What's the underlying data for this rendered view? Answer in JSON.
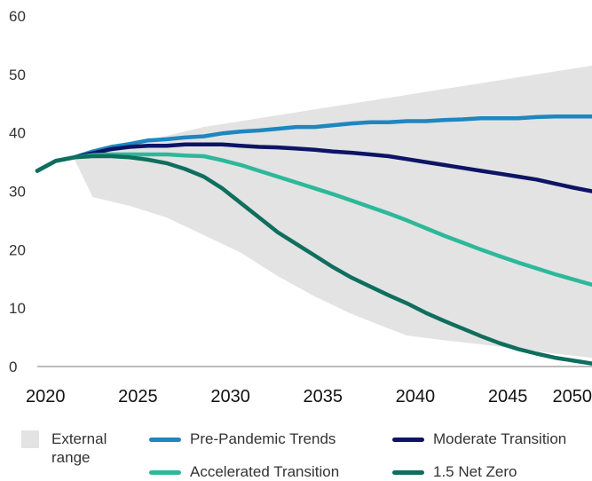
{
  "chart_data": {
    "type": "line",
    "title": "",
    "xlabel": "",
    "ylabel": "",
    "xlim": [
      2020,
      2050
    ],
    "ylim": [
      0,
      60
    ],
    "x_ticks": [
      "2020",
      "2025",
      "2030",
      "2035",
      "2040",
      "2045",
      "2050"
    ],
    "y_ticks": [
      "0",
      "10",
      "20",
      "30",
      "40",
      "50",
      "60"
    ],
    "grid": false,
    "legend_position": "bottom",
    "range": {
      "name": "External range",
      "color": "#e3e3e3",
      "x": [
        2022,
        2023,
        2025,
        2027,
        2029,
        2031,
        2033,
        2035,
        2037,
        2039,
        2040,
        2042,
        2044,
        2046,
        2048,
        2050
      ],
      "lower": [
        35.5,
        29,
        27.5,
        25.5,
        22.5,
        19.5,
        15.5,
        12,
        9,
        6.5,
        5.3,
        4.5,
        3.8,
        3,
        2.2,
        1.5
      ],
      "upper": [
        35.5,
        36.5,
        38,
        39.5,
        41,
        42,
        43,
        44,
        45,
        46,
        46.5,
        47.5,
        48.5,
        49.5,
        50.5,
        51.5
      ]
    },
    "series": [
      {
        "name": "Pre-Pandemic Trends",
        "color": "#1f86bf",
        "x": [
          2020,
          2021,
          2022,
          2023,
          2024,
          2025,
          2026,
          2027,
          2028,
          2029,
          2030,
          2031,
          2032,
          2033,
          2034,
          2035,
          2036,
          2037,
          2038,
          2039,
          2040,
          2041,
          2042,
          2043,
          2044,
          2045,
          2046,
          2047,
          2048,
          2049,
          2050
        ],
        "values": [
          33.5,
          35.2,
          35.8,
          36.8,
          37.6,
          38.1,
          38.7,
          38.9,
          39.2,
          39.4,
          39.9,
          40.2,
          40.4,
          40.7,
          41.0,
          41.0,
          41.3,
          41.6,
          41.8,
          41.8,
          42.0,
          42.0,
          42.2,
          42.3,
          42.5,
          42.5,
          42.5,
          42.7,
          42.8,
          42.8,
          42.8
        ]
      },
      {
        "name": "Moderate Transition",
        "color": "#0d1466",
        "x": [
          2020,
          2021,
          2022,
          2023,
          2024,
          2025,
          2026,
          2027,
          2028,
          2029,
          2030,
          2031,
          2032,
          2033,
          2034,
          2035,
          2036,
          2037,
          2038,
          2039,
          2040,
          2041,
          2042,
          2043,
          2044,
          2045,
          2046,
          2047,
          2048,
          2049,
          2050
        ],
        "values": [
          33.5,
          35.2,
          35.8,
          36.5,
          37.2,
          37.6,
          37.8,
          37.8,
          38.0,
          38.0,
          38.0,
          37.8,
          37.6,
          37.5,
          37.3,
          37.1,
          36.8,
          36.6,
          36.3,
          36.0,
          35.5,
          35.0,
          34.5,
          34.0,
          33.5,
          33.0,
          32.5,
          32.0,
          31.3,
          30.6,
          30.0
        ]
      },
      {
        "name": "Accelerated Transition",
        "color": "#2db89a",
        "x": [
          2020,
          2021,
          2022,
          2023,
          2024,
          2025,
          2026,
          2027,
          2028,
          2029,
          2030,
          2031,
          2032,
          2033,
          2034,
          2035,
          2036,
          2037,
          2038,
          2039,
          2040,
          2041,
          2042,
          2043,
          2044,
          2045,
          2046,
          2047,
          2048,
          2049,
          2050
        ],
        "values": [
          33.5,
          35.2,
          35.8,
          36.2,
          36.3,
          36.3,
          36.3,
          36.3,
          36.1,
          36.0,
          35.3,
          34.5,
          33.5,
          32.5,
          31.5,
          30.5,
          29.5,
          28.4,
          27.3,
          26.2,
          25.0,
          23.7,
          22.4,
          21.2,
          20.0,
          18.9,
          17.8,
          16.8,
          15.8,
          14.9,
          14.0
        ]
      },
      {
        "name": "1.5 Net Zero",
        "color": "#0f6e5e",
        "x": [
          2020,
          2021,
          2022,
          2023,
          2024,
          2025,
          2026,
          2027,
          2028,
          2029,
          2030,
          2031,
          2032,
          2033,
          2034,
          2035,
          2036,
          2037,
          2038,
          2039,
          2040,
          2041,
          2042,
          2043,
          2044,
          2045,
          2046,
          2047,
          2048,
          2049,
          2050
        ],
        "values": [
          33.5,
          35.2,
          35.8,
          36.0,
          36.0,
          35.8,
          35.4,
          34.8,
          33.8,
          32.5,
          30.5,
          28.0,
          25.5,
          23.0,
          21.0,
          19.0,
          17.0,
          15.2,
          13.7,
          12.2,
          10.8,
          9.2,
          7.8,
          6.5,
          5.2,
          4.0,
          3.0,
          2.2,
          1.5,
          1.0,
          0.5
        ]
      }
    ]
  }
}
